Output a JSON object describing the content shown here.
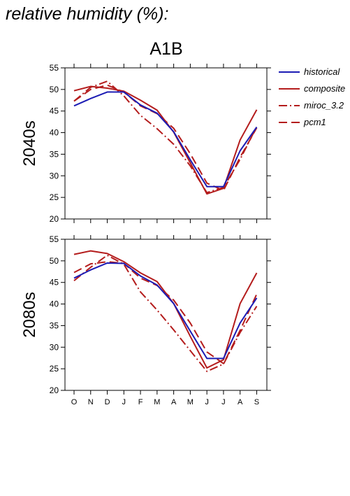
{
  "title": "relative humidity (%):",
  "scenario": "A1B",
  "colors": {
    "historical": "#1c1cb4",
    "models": "#b41c1c"
  },
  "legend": [
    {
      "name": "historical",
      "color": "#1c1cb4",
      "dash": ""
    },
    {
      "name": "composite",
      "color": "#b41c1c",
      "dash": ""
    },
    {
      "name": "miroc_3.2",
      "color": "#b41c1c",
      "dash": "12,4,2,4"
    },
    {
      "name": "pcm1",
      "color": "#b41c1c",
      "dash": "12,6"
    }
  ],
  "chart_data": [
    {
      "type": "line",
      "title": "A1B",
      "ylabel": "2040s",
      "categories": [
        "O",
        "N",
        "D",
        "J",
        "F",
        "M",
        "A",
        "M",
        "J",
        "J",
        "A",
        "S"
      ],
      "ylim": [
        20,
        55
      ],
      "yticks": [
        20,
        25,
        30,
        35,
        40,
        45,
        50,
        55
      ],
      "series": [
        {
          "name": "historical",
          "values": [
            46.2,
            47.9,
            49.4,
            49.4,
            46.4,
            44.5,
            40.2,
            33.7,
            27.5,
            27.5,
            35.8,
            41.3
          ]
        },
        {
          "name": "composite",
          "values": [
            49.7,
            50.7,
            50.3,
            49.6,
            47.5,
            45.2,
            40.1,
            33.0,
            25.8,
            27.1,
            38.3,
            45.3
          ]
        },
        {
          "name": "miroc_3.2",
          "values": [
            47.3,
            50.5,
            51.9,
            48.5,
            44.0,
            40.9,
            37.3,
            32.3,
            26.1,
            27.3,
            33.8,
            41.4
          ]
        },
        {
          "name": "pcm1",
          "values": [
            47.3,
            50.0,
            51.0,
            49.4,
            46.2,
            44.4,
            41.0,
            35.1,
            28.3,
            26.6,
            34.3,
            41.1
          ]
        }
      ]
    },
    {
      "type": "line",
      "ylabel": "2080s",
      "categories": [
        "O",
        "N",
        "D",
        "J",
        "F",
        "M",
        "A",
        "M",
        "J",
        "J",
        "A",
        "S"
      ],
      "ylim": [
        20,
        55
      ],
      "yticks": [
        20,
        25,
        30,
        35,
        40,
        45,
        50,
        55
      ],
      "series": [
        {
          "name": "historical",
          "values": [
            46.0,
            47.9,
            49.5,
            49.4,
            46.5,
            44.4,
            40.1,
            33.7,
            27.4,
            27.4,
            35.6,
            41.4
          ]
        },
        {
          "name": "composite",
          "values": [
            51.5,
            52.3,
            51.7,
            49.8,
            47.2,
            45.2,
            40.1,
            32.5,
            25.2,
            27.1,
            40.1,
            47.2
          ]
        },
        {
          "name": "miroc_3.2",
          "values": [
            45.4,
            48.5,
            51.3,
            49.2,
            42.8,
            38.6,
            34.0,
            29.2,
            24.4,
            26.1,
            33.4,
            39.5
          ]
        },
        {
          "name": "pcm1",
          "values": [
            47.3,
            49.3,
            49.8,
            49.4,
            46.0,
            44.3,
            40.9,
            35.6,
            28.9,
            26.2,
            33.9,
            42.3
          ]
        }
      ]
    }
  ]
}
